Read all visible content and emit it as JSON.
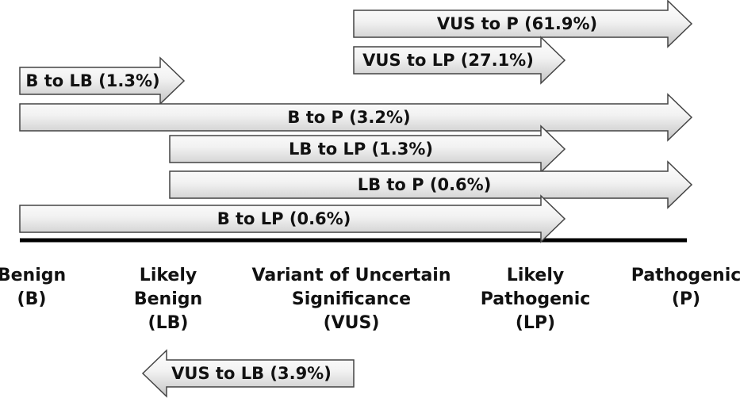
{
  "arrows": [
    {
      "label": "VUS to P (61.9%)",
      "from": "VUS",
      "to": "P",
      "percent": 61.9
    },
    {
      "label": "VUS to LP (27.1%)",
      "from": "VUS",
      "to": "LP",
      "percent": 27.1
    },
    {
      "label": "B to LB (1.3%)",
      "from": "B",
      "to": "LB",
      "percent": 1.3
    },
    {
      "label": "B to P (3.2%)",
      "from": "B",
      "to": "P",
      "percent": 3.2
    },
    {
      "label": "LB to LP (1.3%)",
      "from": "LB",
      "to": "LP",
      "percent": 1.3
    },
    {
      "label": "LB to P (0.6%)",
      "from": "LB",
      "to": "P",
      "percent": 0.6
    },
    {
      "label": "B to LP (0.6%)",
      "from": "B",
      "to": "LP",
      "percent": 0.6
    },
    {
      "label": "VUS to LB (3.9%)",
      "from": "VUS",
      "to": "LB",
      "percent": 3.9
    }
  ],
  "categories": [
    {
      "line1": "Benign",
      "line2": "(B)",
      "line3": ""
    },
    {
      "line1": "Likely",
      "line2": "Benign",
      "line3": "(LB)"
    },
    {
      "line1": "Variant of Uncertain",
      "line2": "Significance",
      "line3": "(VUS)"
    },
    {
      "line1": "Likely",
      "line2": "Pathogenic",
      "line3": "(LP)"
    },
    {
      "line1": "Pathogenic",
      "line2": "(P)",
      "line3": ""
    }
  ],
  "colors": {
    "axis": "#000000",
    "arrow_stroke": "#444444",
    "arrow_fill_light": "#ffffff",
    "arrow_fill_dark": "#c4c4c4"
  }
}
